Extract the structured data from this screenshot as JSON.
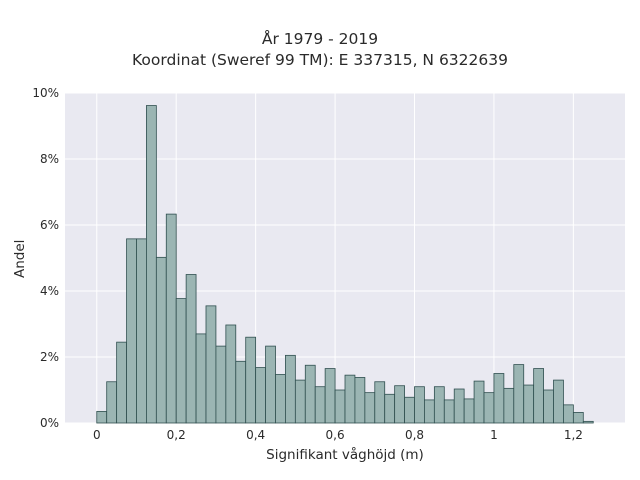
{
  "chart_data": {
    "type": "bar",
    "title_lines": [
      "År 1979 - 2019",
      "Koordinat (Sweref 99 TM): E 337315, N 6322639"
    ],
    "xlabel": "Signifikant våghöjd (m)",
    "ylabel": "Andel",
    "xlim": [
      -0.08,
      1.33
    ],
    "ylim": [
      0,
      10
    ],
    "x_ticks": [
      0,
      0.2,
      0.4,
      0.6,
      0.8,
      1,
      1.2
    ],
    "x_tick_labels": [
      "0",
      "0,2",
      "0,4",
      "0,6",
      "0,8",
      "1",
      "1,2"
    ],
    "y_ticks": [
      0,
      2,
      4,
      6,
      8,
      10
    ],
    "y_tick_labels": [
      "0%",
      "2%",
      "4%",
      "6%",
      "8%",
      "10%"
    ],
    "bin_start": 0,
    "bin_width": 0.025,
    "values": [
      0.35,
      1.25,
      2.45,
      5.58,
      5.58,
      9.62,
      5.02,
      6.33,
      3.77,
      4.5,
      2.7,
      3.55,
      2.33,
      2.97,
      1.87,
      2.6,
      1.68,
      2.33,
      1.47,
      2.05,
      1.3,
      1.75,
      1.1,
      1.65,
      1.0,
      1.45,
      1.38,
      0.92,
      1.25,
      0.87,
      1.13,
      0.78,
      1.1,
      0.7,
      1.1,
      0.7,
      1.03,
      0.73,
      1.27,
      0.92,
      1.5,
      1.05,
      1.77,
      1.15,
      1.65,
      1.0,
      1.3,
      0.55,
      0.32,
      0.05
    ],
    "grid": true,
    "bar_color": "#9bb5b3",
    "bar_edge_color": "#2f4f4f",
    "plot_bg": "#e9e9f1",
    "grid_color": "#ffffff"
  }
}
